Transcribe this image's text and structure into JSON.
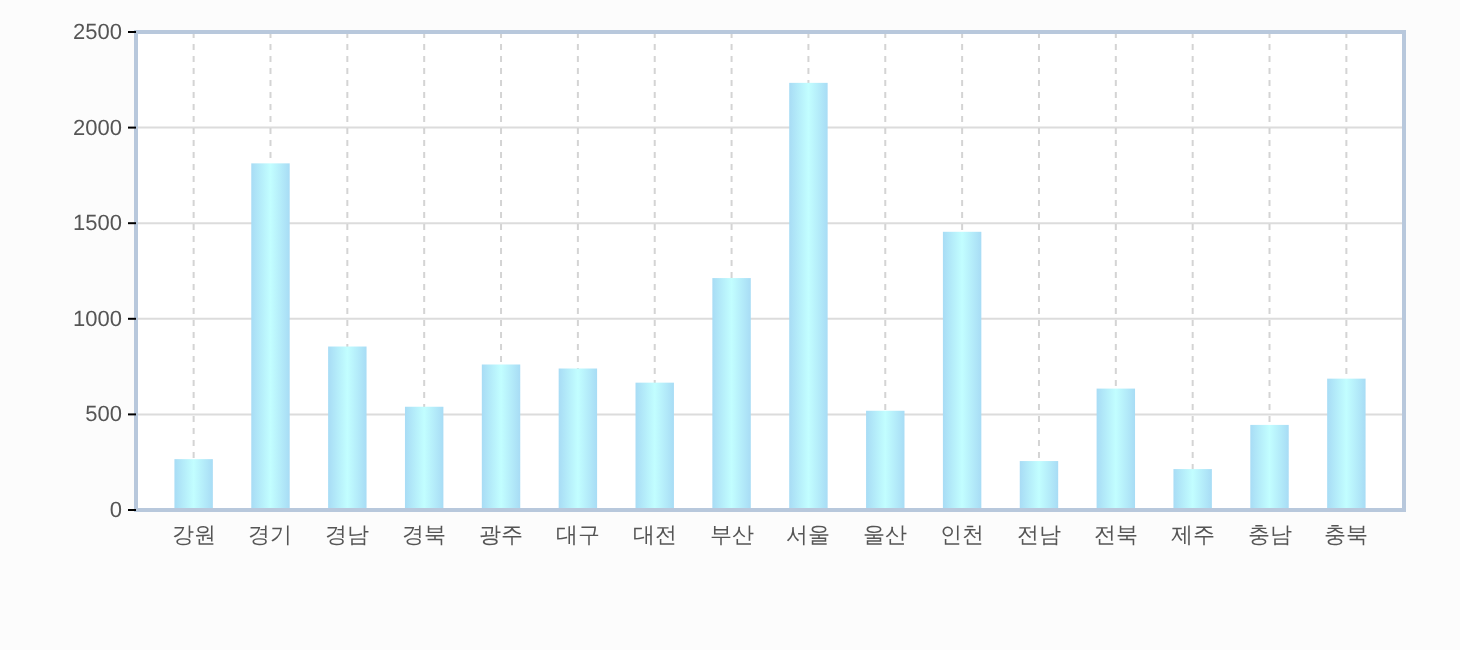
{
  "chart_data": {
    "type": "bar",
    "categories": [
      "강원",
      "경기",
      "경남",
      "경북",
      "광주",
      "대구",
      "대전",
      "부산",
      "서울",
      "울산",
      "인천",
      "전남",
      "전북",
      "제주",
      "충남",
      "충북"
    ],
    "series": [
      {
        "color": "#a8dcf5",
        "values": [
          266,
          1813,
          855,
          540,
          761,
          740,
          666,
          1213,
          2234,
          519,
          1455,
          256,
          635,
          214,
          445,
          687
        ]
      }
    ],
    "ylim": [
      0,
      2500
    ],
    "yticks": [
      0,
      500,
      1000,
      1500,
      2000,
      2500
    ],
    "grid": true
  }
}
